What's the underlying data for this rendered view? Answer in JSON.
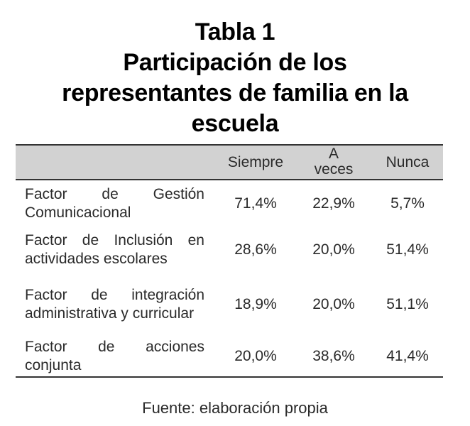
{
  "title": {
    "lines": [
      "Tabla 1",
      "Participación de los",
      "representantes de familia en la",
      "escuela"
    ]
  },
  "table": {
    "columns": [
      "",
      "Siempre",
      "A\nveces",
      "Nunca"
    ],
    "column_labels": {
      "siempre": "Siempre",
      "a_veces_line1": "A",
      "a_veces_line2": "veces",
      "nunca": "Nunca"
    },
    "rows": [
      {
        "label_lines": [
          "Factor de Gestión",
          "Comunicacional"
        ],
        "label": "Factor de Gestión Comunicacional",
        "siempre": "71,4%",
        "a_veces": "22,9%",
        "nunca": "5,7%"
      },
      {
        "label_lines": [
          "Factor de Inclusión en",
          "actividades escolares"
        ],
        "label": "Factor de Inclusión en actividades escolares",
        "siempre": "28,6%",
        "a_veces": "20,0%",
        "nunca": "51,4%"
      },
      {
        "label_lines": [
          "Factor de integración",
          "administrativa y",
          "curricular"
        ],
        "label": "Factor de integración administrativa y curricular",
        "siempre": "18,9%",
        "a_veces": "20,0%",
        "nunca": "51,1%"
      },
      {
        "label_lines": [
          "Factor de acciones",
          "conjunta"
        ],
        "label": "Factor de acciones conjunta",
        "siempre": "20,0%",
        "a_veces": "38,6%",
        "nunca": "41,4%"
      }
    ]
  },
  "source": "Fuente: elaboración propia",
  "colors": {
    "header_band": "#d2d2d2",
    "rule": "#333333",
    "text": "#2a2a2a"
  }
}
